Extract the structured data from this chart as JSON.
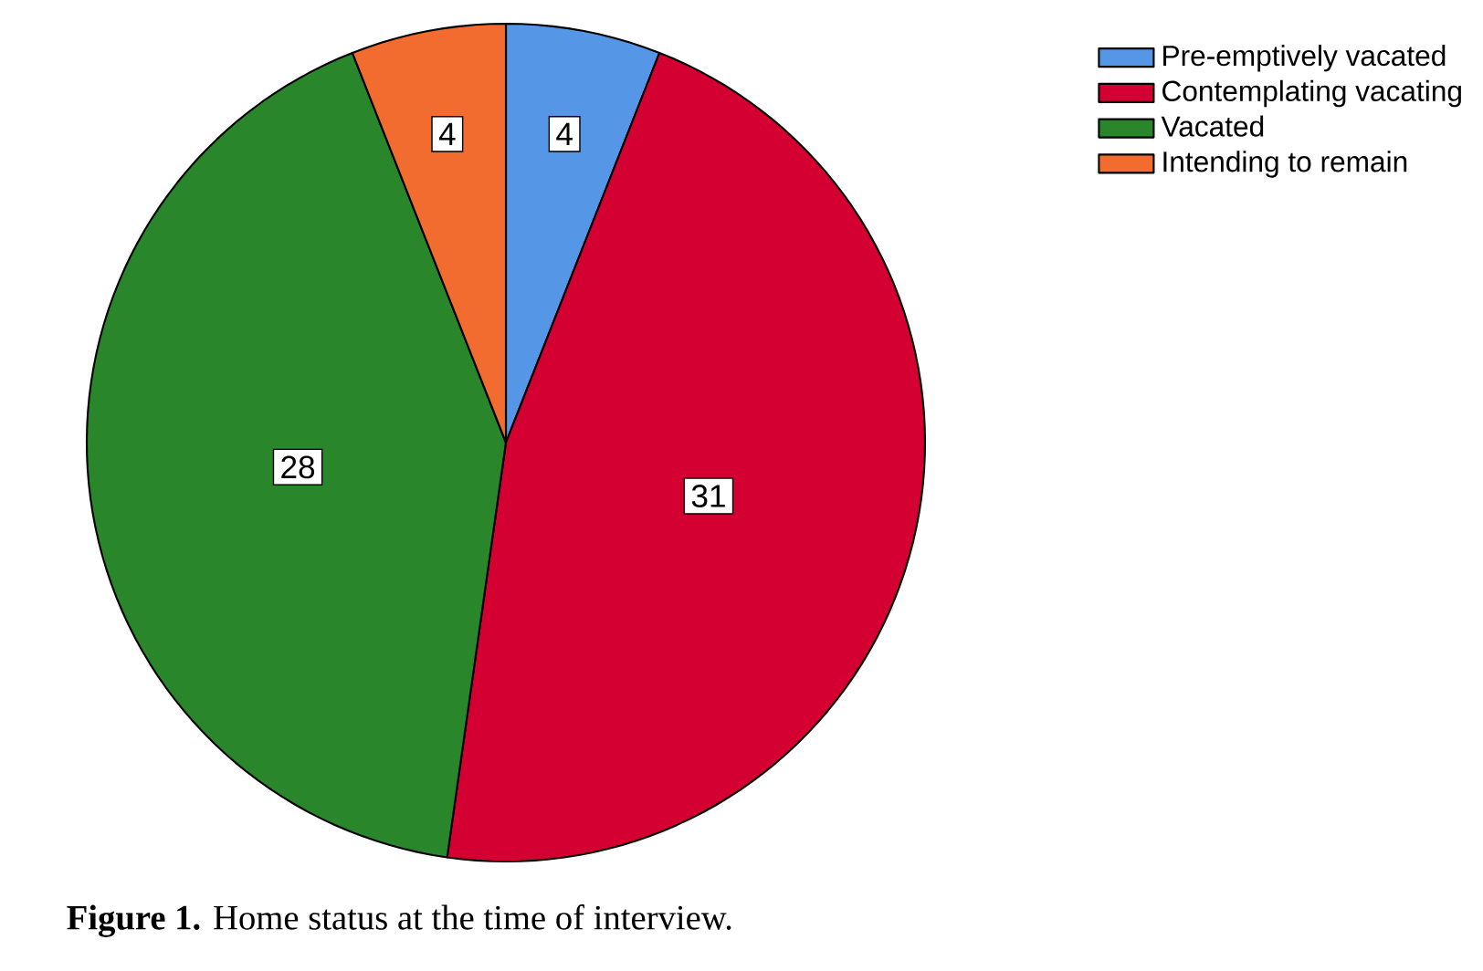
{
  "chart_data": {
    "type": "pie",
    "categories": [
      "Pre-emptively vacated",
      "Contemplating vacating",
      "Vacated",
      "Intending to remain"
    ],
    "values": [
      4,
      31,
      28,
      4
    ],
    "colors": [
      "#5596e6",
      "#d50032",
      "#2a862a",
      "#f26b2f"
    ],
    "data_labels": true,
    "legend": "top right",
    "annotations": [
      "**Figure 1.** Home status at the time of interview."
    ]
  }
}
